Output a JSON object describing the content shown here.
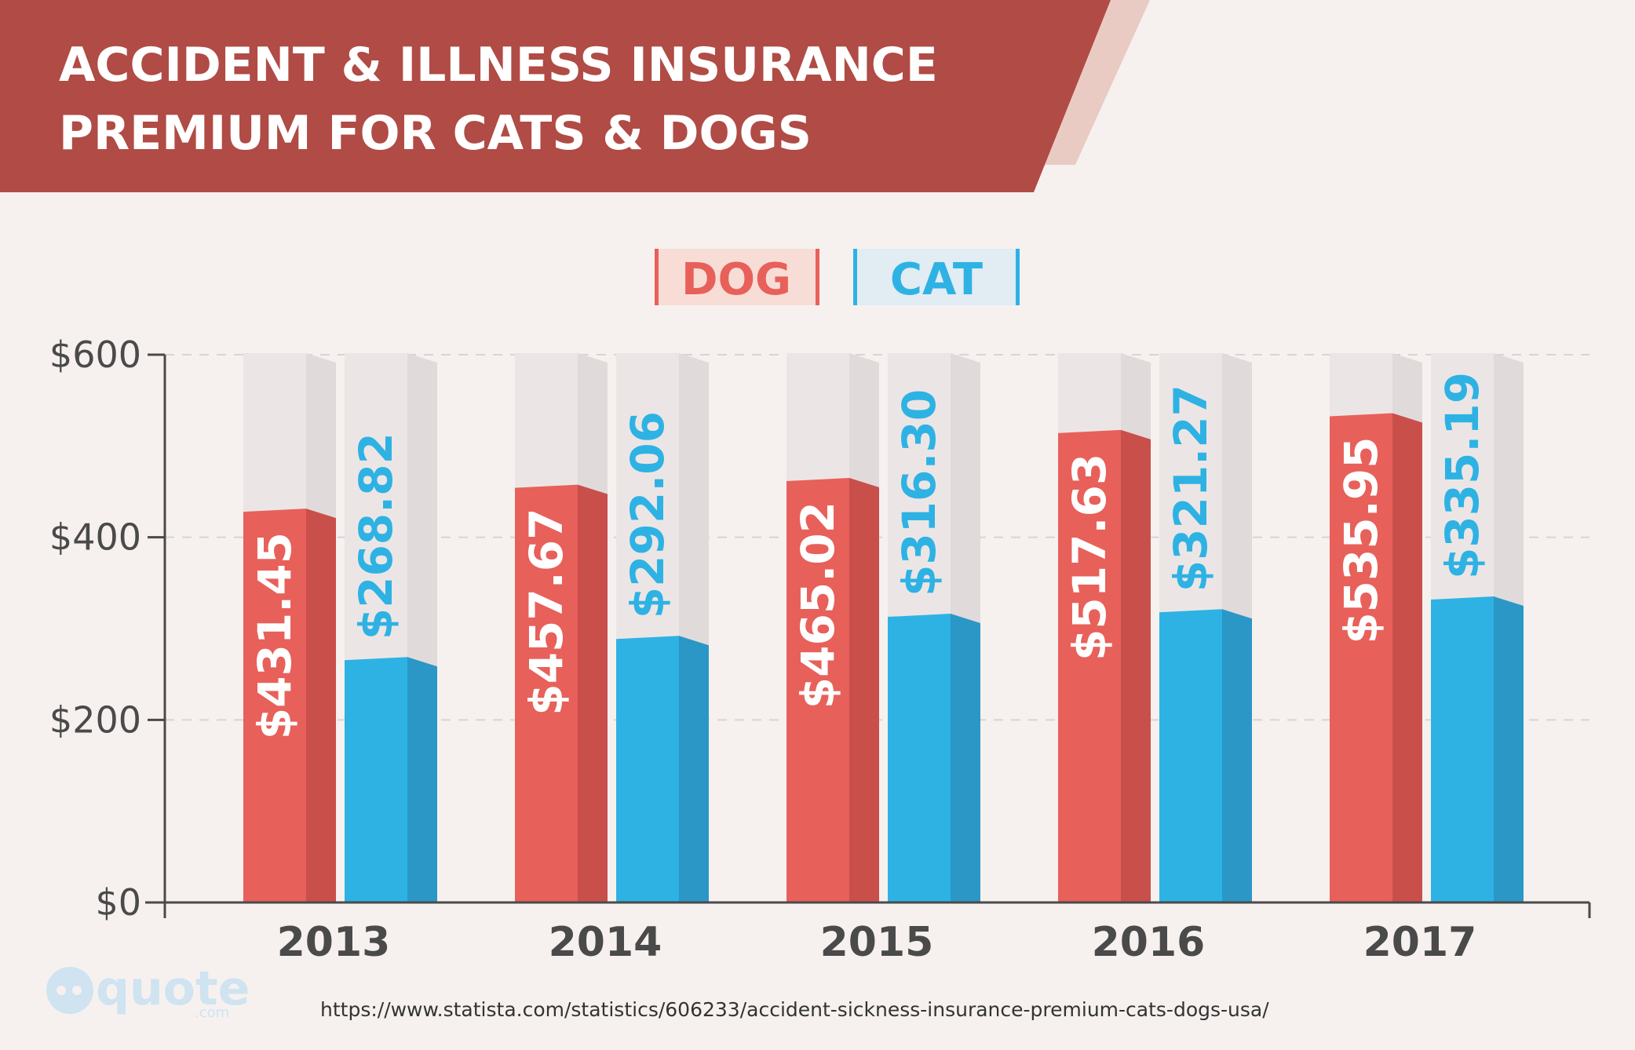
{
  "header": {
    "title_line1": "ACCIDENT & ILLNESS INSURANCE",
    "title_line2": "PREMIUM FOR CATS & DOGS"
  },
  "legend": {
    "dog_label": "DOG",
    "cat_label": "CAT"
  },
  "colors": {
    "banner": "#b04b45",
    "dog": "#e8605a",
    "dog_side": "#c94f4a",
    "cat": "#2eb2e4",
    "cat_side": "#2b97c7",
    "track": "#ebe6e5",
    "track_side": "#e0dbda"
  },
  "chart_data": {
    "type": "bar",
    "title": "ACCIDENT & ILLNESS INSURANCE PREMIUM FOR CATS & DOGS",
    "categories": [
      "2013",
      "2014",
      "2015",
      "2016",
      "2017"
    ],
    "series": [
      {
        "name": "DOG",
        "values": [
          431.45,
          457.67,
          465.02,
          517.63,
          535.95
        ],
        "labels": [
          "$431.45",
          "$457.67",
          "$465.02",
          "$517.63",
          "$535.95"
        ]
      },
      {
        "name": "CAT",
        "values": [
          268.82,
          292.06,
          316.3,
          321.27,
          335.19
        ],
        "labels": [
          "$268.82",
          "$292.06",
          "$316.30",
          "$321.27",
          "$335.19"
        ]
      }
    ],
    "yticks": [
      "$0",
      "$200",
      "$400",
      "$600"
    ],
    "ylim": [
      0,
      600
    ],
    "grid": true,
    "legend_position": "top-center"
  },
  "footer": {
    "source_url": "https://www.statista.com/statistics/606233/accident-sickness-insurance-premium-cats-dogs-usa/",
    "logo_text": "quote",
    "logo_suffix": ".com"
  }
}
